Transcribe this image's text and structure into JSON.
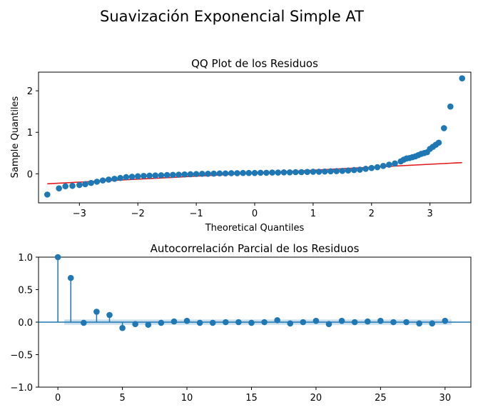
{
  "figure": {
    "suptitle": "Suavización Exponencial Simple AT"
  },
  "chart_data": [
    {
      "type": "scatter",
      "title": "QQ Plot de los Residuos",
      "xlabel": "Theoretical Quantiles",
      "ylabel": "Sample Quantiles",
      "xlim": [
        -3.7,
        3.7
      ],
      "ylim": [
        -0.7,
        2.45
      ],
      "xticks": [
        -3,
        -2,
        -1,
        0,
        1,
        2,
        3
      ],
      "yticks": [
        0,
        1,
        2
      ],
      "marker_color": "#1f77b4",
      "line_color": "#e31a1c",
      "reference_line": {
        "x": [
          -3.55,
          3.55
        ],
        "y": [
          -0.24,
          0.27
        ]
      },
      "points": {
        "x": [
          -3.55,
          -3.35,
          -3.24,
          -3.12,
          -3.0,
          -2.9,
          -2.8,
          -2.7,
          -2.6,
          -2.5,
          -2.4,
          -2.3,
          -2.2,
          -2.1,
          -2.0,
          -1.9,
          -1.8,
          -1.7,
          -1.6,
          -1.5,
          -1.4,
          -1.3,
          -1.2,
          -1.1,
          -1.0,
          -0.9,
          -0.8,
          -0.7,
          -0.6,
          -0.5,
          -0.4,
          -0.3,
          -0.2,
          -0.1,
          0.0,
          0.1,
          0.2,
          0.3,
          0.4,
          0.5,
          0.6,
          0.7,
          0.8,
          0.9,
          1.0,
          1.1,
          1.2,
          1.3,
          1.4,
          1.5,
          1.6,
          1.7,
          1.8,
          1.9,
          2.0,
          2.1,
          2.2,
          2.3,
          2.4,
          2.5,
          2.55,
          2.6,
          2.65,
          2.7,
          2.75,
          2.8,
          2.85,
          2.9,
          2.95,
          3.0,
          3.05,
          3.1,
          3.15,
          3.24,
          3.35,
          3.55
        ],
        "y": [
          -0.5,
          -0.35,
          -0.3,
          -0.29,
          -0.27,
          -0.25,
          -0.22,
          -0.19,
          -0.16,
          -0.14,
          -0.12,
          -0.1,
          -0.08,
          -0.07,
          -0.06,
          -0.05,
          -0.045,
          -0.04,
          -0.035,
          -0.03,
          -0.025,
          -0.02,
          -0.015,
          -0.01,
          -0.005,
          0.0,
          0.0,
          0.005,
          0.01,
          0.01,
          0.015,
          0.015,
          0.02,
          0.02,
          0.02,
          0.025,
          0.025,
          0.03,
          0.03,
          0.035,
          0.035,
          0.04,
          0.04,
          0.045,
          0.05,
          0.05,
          0.055,
          0.06,
          0.065,
          0.07,
          0.08,
          0.09,
          0.1,
          0.12,
          0.14,
          0.16,
          0.19,
          0.22,
          0.25,
          0.3,
          0.34,
          0.37,
          0.38,
          0.4,
          0.42,
          0.45,
          0.48,
          0.5,
          0.52,
          0.6,
          0.65,
          0.7,
          0.75,
          1.1,
          1.62,
          2.3
        ]
      }
    },
    {
      "type": "stem",
      "title": "Autocorrelación Parcial de los Residuos",
      "xlim": [
        -1.5,
        32
      ],
      "ylim": [
        -1.0,
        1.0
      ],
      "xticks": [
        0,
        5,
        10,
        15,
        20,
        25,
        30
      ],
      "yticks": [
        -1.0,
        -0.5,
        0.0,
        0.5,
        1.0
      ],
      "ytick_labels": [
        "−1.0",
        "−0.5",
        "0.0",
        "0.5",
        "1.0"
      ],
      "marker_color": "#1f77b4",
      "confidence_band": [
        -0.04,
        0.04
      ],
      "lags": [
        0,
        1,
        2,
        3,
        4,
        5,
        6,
        7,
        8,
        9,
        10,
        11,
        12,
        13,
        14,
        15,
        16,
        17,
        18,
        19,
        20,
        21,
        22,
        23,
        24,
        25,
        26,
        27,
        28,
        29,
        30
      ],
      "values": [
        1.0,
        0.68,
        -0.01,
        0.16,
        0.11,
        -0.09,
        -0.03,
        -0.04,
        -0.01,
        0.01,
        0.02,
        -0.01,
        -0.01,
        0.0,
        0.0,
        -0.01,
        0.0,
        0.03,
        -0.02,
        0.0,
        0.02,
        -0.03,
        0.02,
        0.0,
        0.01,
        0.02,
        0.0,
        0.0,
        -0.02,
        -0.02,
        0.02
      ]
    }
  ]
}
